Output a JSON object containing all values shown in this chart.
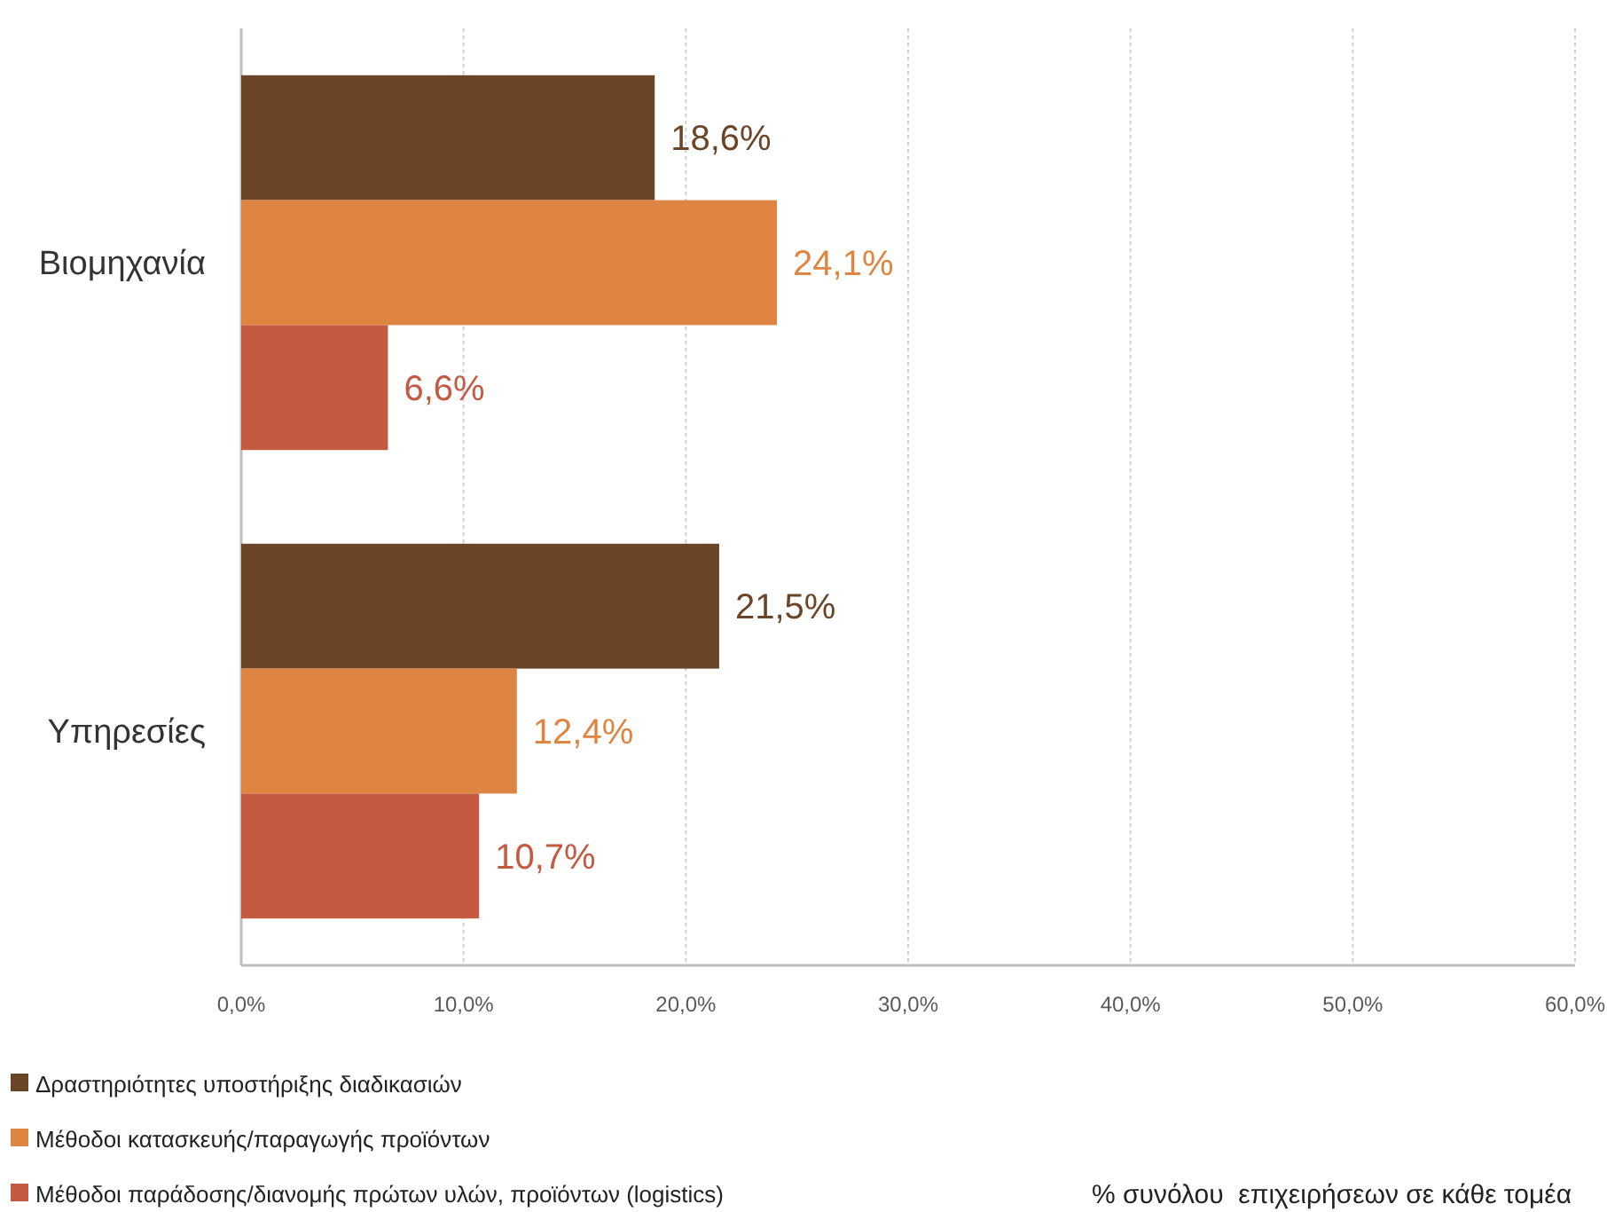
{
  "chart_data": {
    "type": "bar",
    "orientation": "horizontal",
    "categories": [
      "Βιομηχανία",
      "Υπηρεσίες"
    ],
    "series": [
      {
        "name": "Δραστηριότητες υποστήριξης διαδικασιών",
        "color": "#6b4528",
        "values": [
          18.6,
          21.5
        ],
        "value_labels": [
          "18,6%",
          "21,5%"
        ]
      },
      {
        "name": "Μέθοδοι κατασκευής/παραγωγής προϊόντων",
        "color": "#de8542",
        "values": [
          24.1,
          12.4
        ],
        "value_labels": [
          "24,1%",
          "12,4%"
        ]
      },
      {
        "name": "Μέθοδοι παράδοσης/διανομής πρώτων υλών, προϊόντων (logistics)",
        "color": "#c55a42",
        "values": [
          6.6,
          10.7
        ],
        "value_labels": [
          "6,6%",
          "10,7%"
        ]
      }
    ],
    "xlim": [
      0,
      60
    ],
    "xticks": [
      {
        "value": 0,
        "label": "0,0%"
      },
      {
        "value": 10,
        "label": "10,0%"
      },
      {
        "value": 20,
        "label": "20,0%"
      },
      {
        "value": 30,
        "label": "30,0%"
      },
      {
        "value": 40,
        "label": "40,0%"
      },
      {
        "value": 50,
        "label": "50,0%"
      },
      {
        "value": 60,
        "label": "60,0%"
      }
    ],
    "annotations": [
      "% συνόλου  επιχειρήσεων σε κάθε τομέα"
    ],
    "grid": "x",
    "legend": "bottom left"
  }
}
